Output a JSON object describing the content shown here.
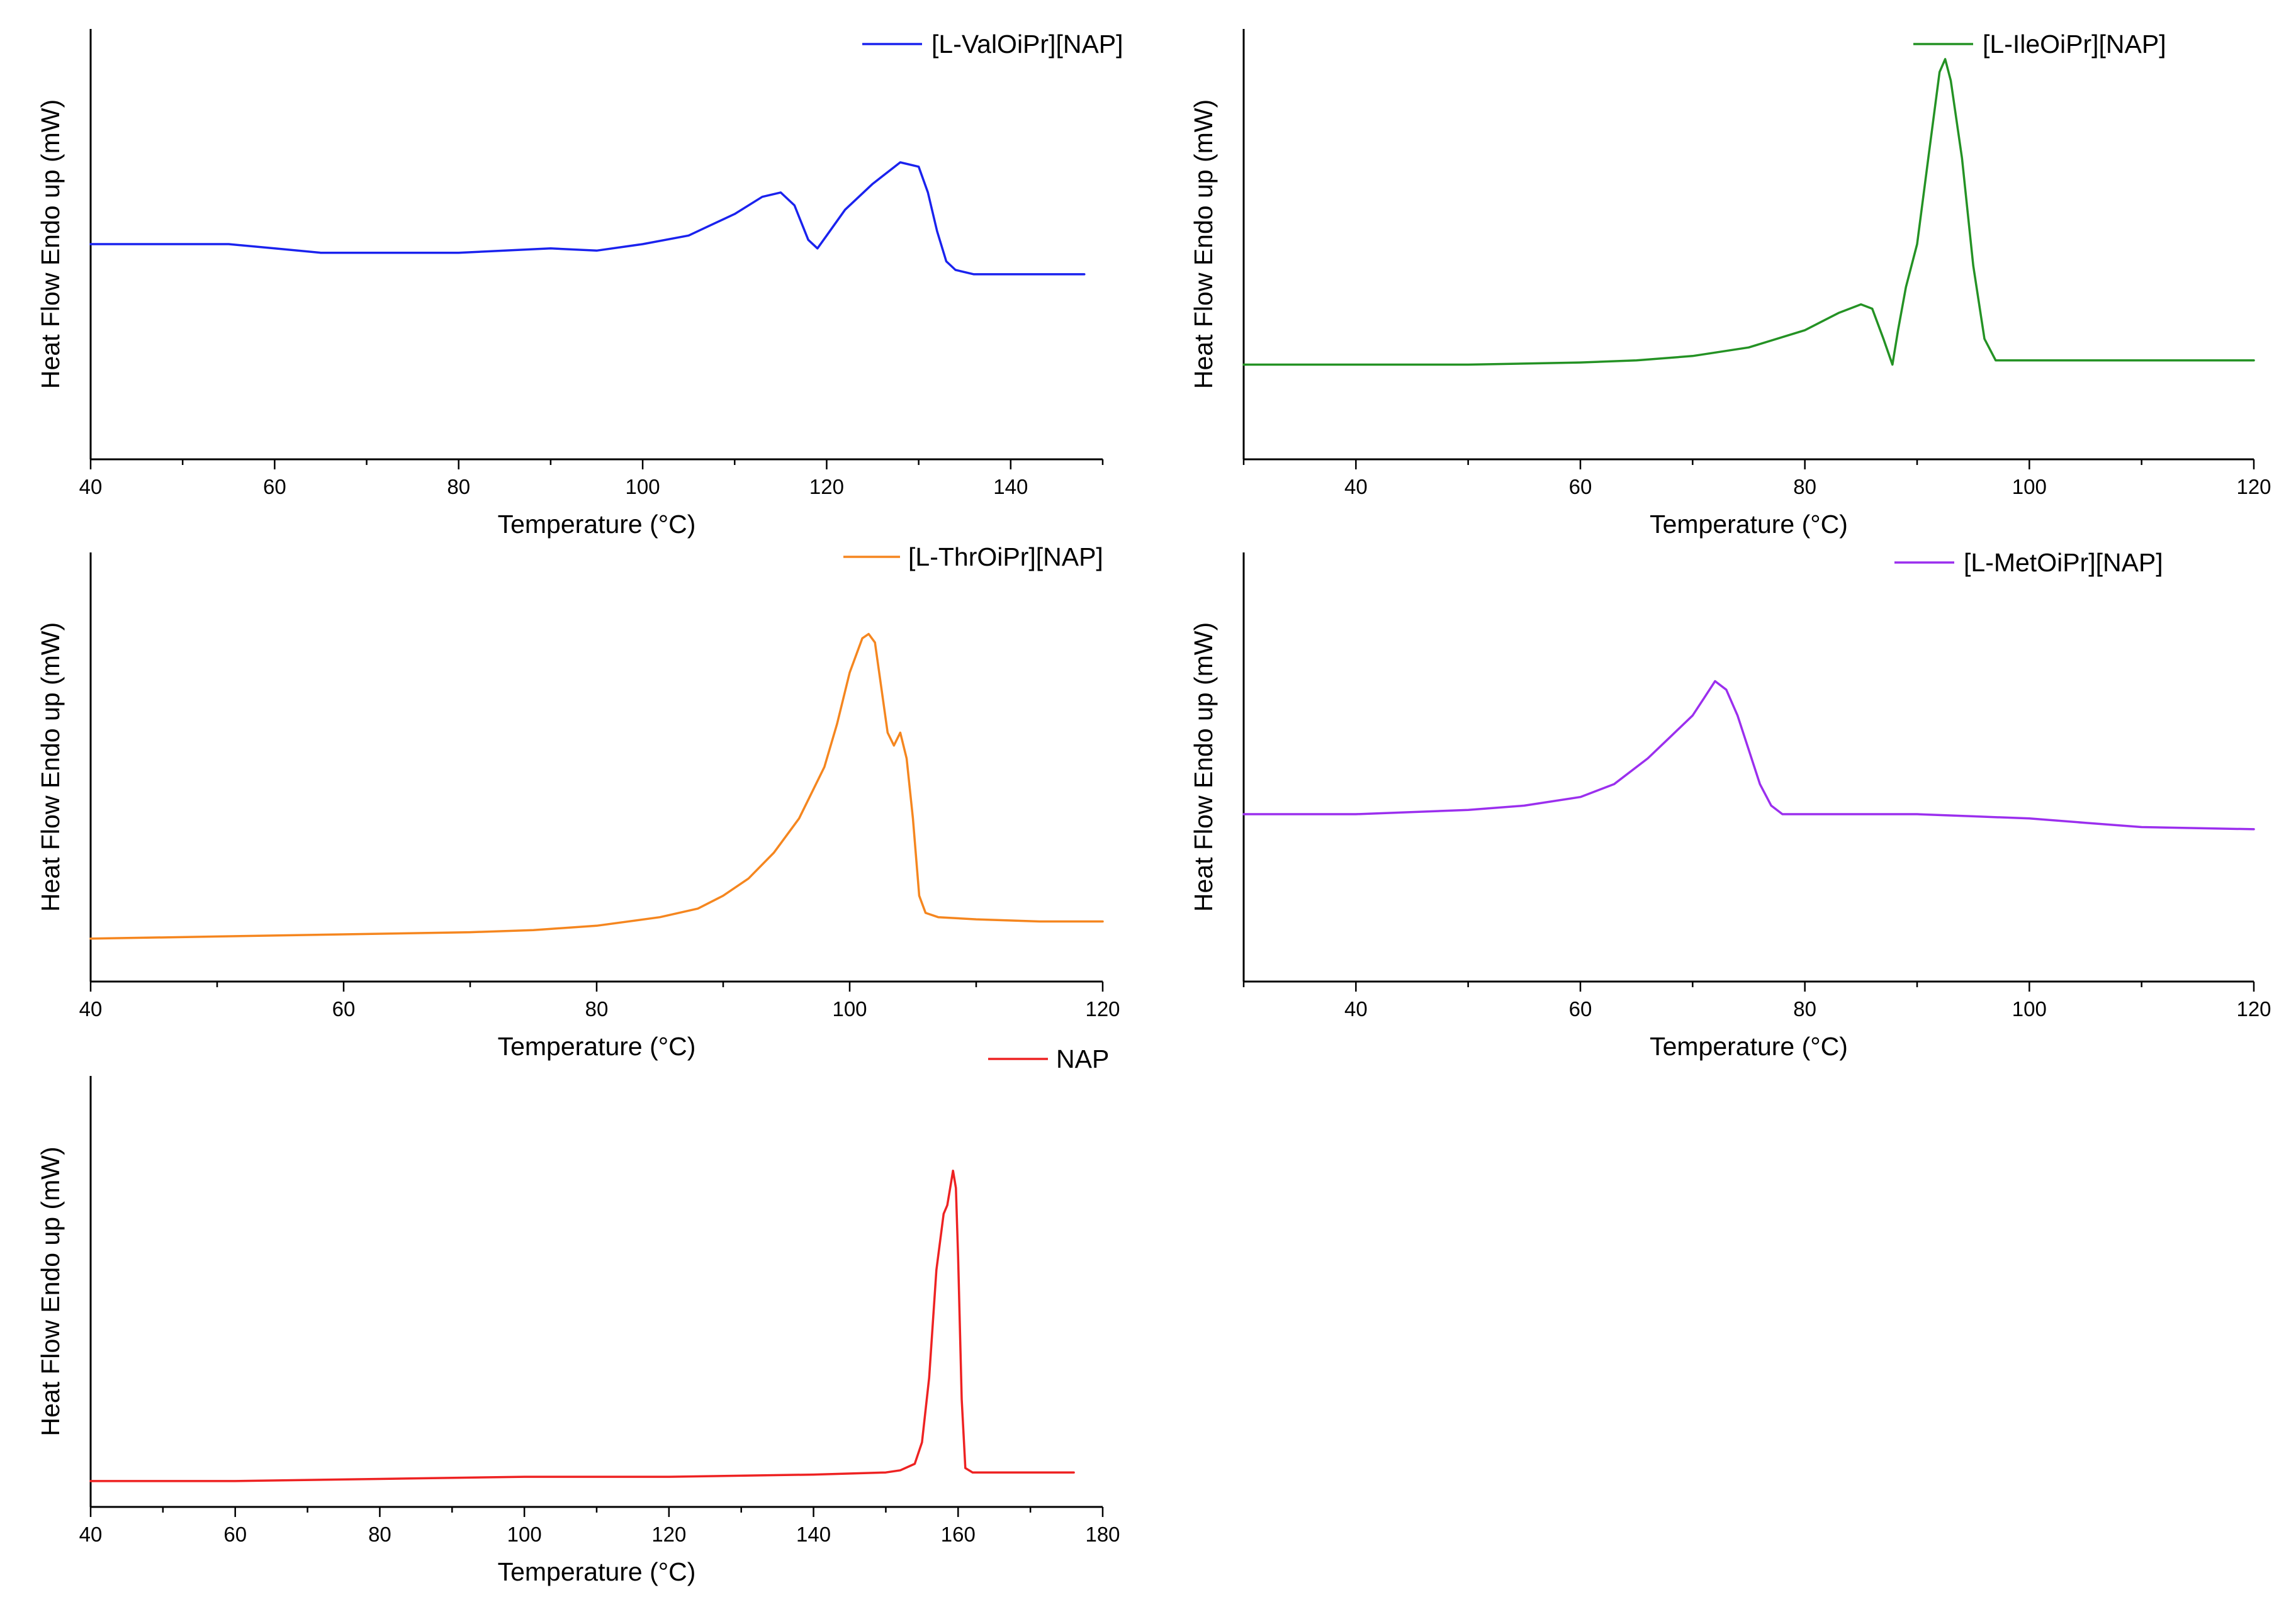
{
  "chart_data": [
    {
      "type": "line",
      "xlabel": "Temperature (°C)",
      "ylabel": "Heat Flow Endo up (mW)",
      "xlim": [
        40,
        150
      ],
      "ylim": [
        0,
        1
      ],
      "xticks": [
        "40",
        "60",
        "80",
        "100",
        "120",
        "140"
      ],
      "color": "#1a22ee",
      "series": [
        {
          "name": "[L-ValOiPr][NAP]",
          "x": [
            40,
            45,
            50,
            55,
            60,
            65,
            70,
            75,
            80,
            85,
            90,
            95,
            100,
            105,
            107,
            110,
            113,
            115,
            116.5,
            118,
            119,
            120,
            122,
            125,
            128,
            130,
            131,
            132,
            133,
            134,
            136,
            140,
            145,
            148
          ],
          "y": [
            0.5,
            0.5,
            0.5,
            0.5,
            0.49,
            0.48,
            0.48,
            0.48,
            0.48,
            0.485,
            0.49,
            0.485,
            0.5,
            0.52,
            0.54,
            0.57,
            0.61,
            0.62,
            0.59,
            0.51,
            0.49,
            0.52,
            0.58,
            0.64,
            0.69,
            0.68,
            0.62,
            0.53,
            0.46,
            0.44,
            0.43,
            0.43,
            0.43,
            0.43
          ]
        }
      ]
    },
    {
      "type": "line",
      "xlabel": "Temperature (°C)",
      "ylabel": "Heat Flow Endo up (mW)",
      "xlim": [
        30,
        120
      ],
      "ylim": [
        0,
        1
      ],
      "xticks": [
        "40",
        "60",
        "80",
        "100",
        "120"
      ],
      "color": "#249224",
      "series": [
        {
          "name": "[L-IleOiPr][NAP]",
          "x": [
            30,
            40,
            50,
            60,
            65,
            70,
            75,
            80,
            83,
            85,
            86,
            87,
            87.8,
            88.3,
            89,
            90,
            91,
            92,
            92.5,
            93,
            94,
            95,
            96,
            97,
            98,
            100,
            110,
            120
          ],
          "y": [
            0.22,
            0.22,
            0.22,
            0.225,
            0.23,
            0.24,
            0.26,
            0.3,
            0.34,
            0.36,
            0.35,
            0.28,
            0.22,
            0.3,
            0.4,
            0.5,
            0.7,
            0.9,
            0.93,
            0.88,
            0.7,
            0.45,
            0.28,
            0.23,
            0.23,
            0.23,
            0.23,
            0.23
          ]
        }
      ]
    },
    {
      "type": "line",
      "xlabel": "Temperature (°C)",
      "ylabel": "Heat Flow Endo up (mW)",
      "xlim": [
        40,
        120
      ],
      "ylim": [
        0,
        1
      ],
      "xticks": [
        "40",
        "60",
        "80",
        "100",
        "120"
      ],
      "color": "#f5861f",
      "series": [
        {
          "name": "[L-ThrOiPr][NAP]",
          "x": [
            40,
            50,
            60,
            70,
            75,
            80,
            85,
            88,
            90,
            92,
            94,
            96,
            98,
            99,
            100,
            101,
            101.5,
            102,
            103,
            103.5,
            104,
            104.5,
            105,
            105.5,
            106,
            107,
            110,
            115,
            120
          ],
          "y": [
            0.1,
            0.105,
            0.11,
            0.115,
            0.12,
            0.13,
            0.15,
            0.17,
            0.2,
            0.24,
            0.3,
            0.38,
            0.5,
            0.6,
            0.72,
            0.8,
            0.81,
            0.79,
            0.58,
            0.55,
            0.58,
            0.52,
            0.38,
            0.2,
            0.16,
            0.15,
            0.145,
            0.14,
            0.14
          ]
        }
      ]
    },
    {
      "type": "line",
      "xlabel": "Temperature (°C)",
      "ylabel": "Heat Flow Endo up (mW)",
      "xlim": [
        30,
        120
      ],
      "ylim": [
        0,
        1
      ],
      "xticks": [
        "40",
        "60",
        "80",
        "100",
        "120"
      ],
      "color": "#9b2fee",
      "series": [
        {
          "name": "[L-MetOiPr][NAP]",
          "x": [
            30,
            40,
            50,
            55,
            60,
            63,
            66,
            68,
            70,
            71,
            72,
            73,
            74,
            75,
            76,
            77,
            78,
            80,
            90,
            95,
            100,
            105,
            110,
            120
          ],
          "y": [
            0.39,
            0.39,
            0.4,
            0.41,
            0.43,
            0.46,
            0.52,
            0.57,
            0.62,
            0.66,
            0.7,
            0.68,
            0.62,
            0.54,
            0.46,
            0.41,
            0.39,
            0.39,
            0.39,
            0.385,
            0.38,
            0.37,
            0.36,
            0.355
          ]
        }
      ]
    },
    {
      "type": "line",
      "xlabel": "Temperature (°C)",
      "ylabel": "Heat Flow Endo up (mW)",
      "xlim": [
        40,
        180
      ],
      "ylim": [
        0,
        1
      ],
      "xticks": [
        "40",
        "60",
        "80",
        "100",
        "120",
        "140",
        "160",
        "180"
      ],
      "color": "#ee2222",
      "series": [
        {
          "name": "NAP",
          "x": [
            40,
            60,
            80,
            100,
            120,
            140,
            150,
            152,
            154,
            155,
            156,
            157,
            158,
            158.5,
            159,
            159.3,
            159.7,
            160,
            160.5,
            161,
            162,
            165,
            170,
            176
          ],
          "y": [
            0.06,
            0.06,
            0.065,
            0.07,
            0.07,
            0.075,
            0.08,
            0.085,
            0.1,
            0.15,
            0.3,
            0.55,
            0.68,
            0.7,
            0.75,
            0.78,
            0.74,
            0.58,
            0.25,
            0.09,
            0.08,
            0.08,
            0.08,
            0.08
          ]
        }
      ]
    }
  ]
}
